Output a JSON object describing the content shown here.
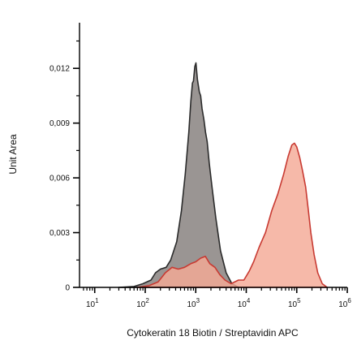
{
  "chart_data": {
    "type": "area",
    "xlabel": "Cytokeratin 18 Biotin / Streptavidin APC",
    "ylabel": "Unit Area",
    "x_scale": "log",
    "xlim": [
      5,
      1000000
    ],
    "ylim": [
      0,
      0.0145
    ],
    "x_ticks": [
      {
        "value": 10,
        "base": "10",
        "exp": "1"
      },
      {
        "value": 100,
        "base": "10",
        "exp": "2"
      },
      {
        "value": 1000,
        "base": "10",
        "exp": "3"
      },
      {
        "value": 10000,
        "base": "10",
        "exp": "4"
      },
      {
        "value": 100000,
        "base": "10",
        "exp": "5"
      },
      {
        "value": 1000000,
        "base": "10",
        "exp": "6"
      }
    ],
    "y_ticks": [
      {
        "value": 0,
        "label": "0"
      },
      {
        "value": 0.003,
        "label": "0,003"
      },
      {
        "value": 0.006,
        "label": "0,006"
      },
      {
        "value": 0.009,
        "label": "0,009"
      },
      {
        "value": 0.012,
        "label": "0,012"
      }
    ],
    "series": [
      {
        "fill": "#9a9593",
        "stroke": "#2b2b2b",
        "points": [
          [
            30,
            0
          ],
          [
            60,
            5e-05
          ],
          [
            90,
            0.0002
          ],
          [
            130,
            0.0004
          ],
          [
            160,
            0.0008
          ],
          [
            200,
            0.001
          ],
          [
            260,
            0.0011
          ],
          [
            320,
            0.0015
          ],
          [
            420,
            0.0025
          ],
          [
            520,
            0.0042
          ],
          [
            620,
            0.0062
          ],
          [
            730,
            0.0085
          ],
          [
            800,
            0.0102
          ],
          [
            860,
            0.0112
          ],
          [
            900,
            0.0113
          ],
          [
            960,
            0.0121
          ],
          [
            1010,
            0.0123
          ],
          [
            1080,
            0.0114
          ],
          [
            1180,
            0.0107
          ],
          [
            1250,
            0.0105
          ],
          [
            1330,
            0.0098
          ],
          [
            1450,
            0.0092
          ],
          [
            1560,
            0.0085
          ],
          [
            1680,
            0.008
          ],
          [
            1850,
            0.0068
          ],
          [
            2100,
            0.0055
          ],
          [
            2500,
            0.0038
          ],
          [
            3100,
            0.002
          ],
          [
            4000,
            0.0008
          ],
          [
            5200,
            0.0002
          ],
          [
            7000,
            0
          ]
        ]
      },
      {
        "fill": "#f4a996",
        "stroke": "#c83a32",
        "points": [
          [
            70,
            0
          ],
          [
            120,
            0.0001
          ],
          [
            180,
            0.0003
          ],
          [
            250,
            0.0008
          ],
          [
            340,
            0.0011
          ],
          [
            450,
            0.001
          ],
          [
            600,
            0.0011
          ],
          [
            800,
            0.0013
          ],
          [
            1000,
            0.0014
          ],
          [
            1250,
            0.0016
          ],
          [
            1550,
            0.0017
          ],
          [
            1900,
            0.0013
          ],
          [
            2400,
            0.0011
          ],
          [
            3000,
            0.0007
          ],
          [
            3800,
            0.0004
          ],
          [
            5000,
            0.0002
          ],
          [
            7000,
            0.0004
          ],
          [
            9000,
            0.0004
          ],
          [
            11500,
            0.0009
          ],
          [
            14000,
            0.0014
          ],
          [
            18000,
            0.0022
          ],
          [
            24000,
            0.003
          ],
          [
            32000,
            0.0042
          ],
          [
            42000,
            0.0051
          ],
          [
            55000,
            0.0062
          ],
          [
            68000,
            0.0072
          ],
          [
            80000,
            0.0078
          ],
          [
            90000,
            0.0079
          ],
          [
            100000,
            0.0077
          ],
          [
            115000,
            0.0071
          ],
          [
            130000,
            0.0064
          ],
          [
            150000,
            0.0055
          ],
          [
            170000,
            0.0042
          ],
          [
            190000,
            0.003
          ],
          [
            220000,
            0.0018
          ],
          [
            260000,
            0.0008
          ],
          [
            320000,
            0.0002
          ],
          [
            400000,
            0
          ]
        ]
      }
    ]
  }
}
